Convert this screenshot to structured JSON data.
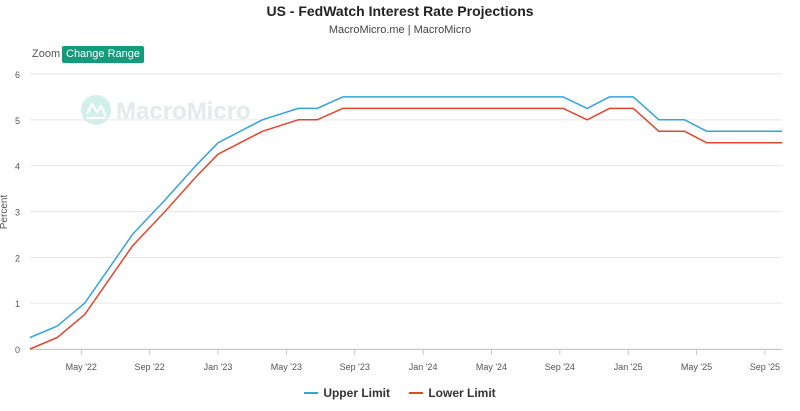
{
  "header": {
    "title": "US - FedWatch Interest Rate Projections",
    "subtitle": "MacroMicro.me | MacroMicro"
  },
  "toolbar": {
    "zoom_label": "Zoom",
    "change_range_label": "Change Range"
  },
  "watermark": {
    "text": "MacroMicro"
  },
  "colors": {
    "upper": "#34a4d8",
    "lower": "#e2462e",
    "accent": "#139b7c"
  },
  "chart_data": {
    "type": "line",
    "title": "US - FedWatch Interest Rate Projections",
    "xlabel": "",
    "ylabel": "Percent",
    "ylim": [
      0,
      6
    ],
    "yticks": [
      "0",
      "1",
      "2",
      "3",
      "4",
      "5",
      "6"
    ],
    "grid": true,
    "legend_position": "bottom-center",
    "x_range": [
      0,
      44
    ],
    "x_tick_positions": [
      3,
      7,
      11,
      15,
      19,
      23,
      27,
      31,
      35,
      39,
      43
    ],
    "x_tick_labels": [
      "May '22",
      "Sep '22",
      "Jan '23",
      "May '23",
      "Sep '23",
      "Jan '24",
      "May '24",
      "Sep '24",
      "Jan '25",
      "May '25",
      "Sep '25"
    ],
    "series": [
      {
        "name": "Upper Limit",
        "color": "#34a4d8",
        "x": [
          0,
          1.6,
          3.2,
          6,
          7.9,
          9.7,
          11,
          13.6,
          15.7,
          16.8,
          18.3,
          19.6,
          31.2,
          32.6,
          33.9,
          35.3,
          36.8,
          38.3,
          39.6,
          44
        ],
        "values": [
          0.25,
          0.5,
          1.0,
          2.5,
          3.25,
          4.0,
          4.5,
          5.0,
          5.25,
          5.25,
          5.5,
          5.5,
          5.5,
          5.25,
          5.5,
          5.5,
          5.0,
          5.0,
          4.75,
          4.75
        ]
      },
      {
        "name": "Lower Limit",
        "color": "#e2462e",
        "x": [
          0,
          1.6,
          3.2,
          6,
          7.9,
          9.7,
          11,
          13.6,
          15.7,
          16.8,
          18.3,
          19.6,
          31.2,
          32.6,
          33.9,
          35.3,
          36.8,
          38.3,
          39.6,
          44
        ],
        "values": [
          0.0,
          0.25,
          0.75,
          2.25,
          3.0,
          3.75,
          4.25,
          4.75,
          5.0,
          5.0,
          5.25,
          5.25,
          5.25,
          5.0,
          5.25,
          5.25,
          4.75,
          4.75,
          4.5,
          4.5
        ]
      }
    ]
  }
}
